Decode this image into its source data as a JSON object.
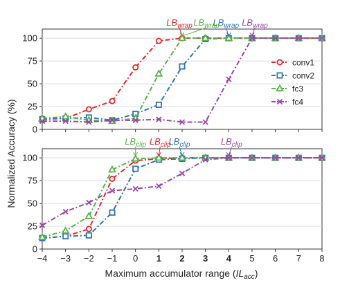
{
  "chart_data": [
    {
      "type": "line",
      "panel": "top",
      "ylabel": "",
      "xlabel": "",
      "ylim": [
        0,
        110
      ],
      "yticks": [
        0,
        25,
        50,
        75,
        100
      ],
      "xlim": [
        -4,
        8
      ],
      "grid": "horizontal",
      "legend": "center-right",
      "series": [
        {
          "name": "conv1",
          "color": "#e8262a",
          "marker": "circle",
          "dash": "dashdot",
          "x": [
            -4,
            -3,
            -2,
            -1,
            0,
            1,
            2,
            3,
            4,
            5,
            6,
            7,
            8
          ],
          "y": [
            12,
            12,
            22,
            31,
            68,
            97,
            100,
            100,
            100,
            100,
            100,
            100,
            100
          ]
        },
        {
          "name": "conv2",
          "color": "#2f72b6",
          "marker": "square",
          "dash": "dashdot",
          "x": [
            -4,
            -3,
            -2,
            -1,
            0,
            1,
            2,
            3,
            4,
            5,
            6,
            7,
            8
          ],
          "y": [
            11,
            12,
            13,
            10,
            17,
            27,
            69,
            99,
            100,
            100,
            100,
            100,
            100
          ]
        },
        {
          "name": "fc3",
          "color": "#55b448",
          "marker": "triangle",
          "dash": "dashdot",
          "x": [
            -4,
            -3,
            -2,
            -1,
            0,
            1,
            2,
            3,
            4,
            5,
            6,
            7,
            8
          ],
          "y": [
            12,
            14,
            10,
            9,
            12,
            61,
            100,
            100,
            100,
            100,
            100,
            100,
            100
          ]
        },
        {
          "name": "fc4",
          "color": "#9a45a8",
          "marker": "x",
          "dash": "dashdot",
          "x": [
            -4,
            -3,
            -2,
            -1,
            0,
            1,
            2,
            3,
            4,
            5,
            6,
            7,
            8
          ],
          "y": [
            9,
            9,
            8,
            10,
            10,
            11,
            8,
            8,
            55,
            100,
            100,
            100,
            100
          ]
        }
      ],
      "annotations": [
        {
          "base": "LB",
          "sub": "wrap",
          "color": "#e8262a",
          "x": 2
        },
        {
          "base": "LB",
          "sub": "wrap",
          "color": "#55b448",
          "x": 2
        },
        {
          "base": "LB",
          "sub": "wrap",
          "color": "#2f72b6",
          "x": 4
        },
        {
          "base": "LB",
          "sub": "wrap",
          "color": "#9a45a8",
          "x": 5
        }
      ]
    },
    {
      "type": "line",
      "panel": "bottom",
      "ylabel": "",
      "xlabel": "Maximum accumulator range (IL_acc)",
      "ylim": [
        0,
        110
      ],
      "yticks": [
        0,
        25,
        50,
        75,
        100
      ],
      "xlim": [
        -4,
        8
      ],
      "xticks": [
        "−4",
        "−3",
        "−2",
        "−1",
        "0",
        "1",
        "2",
        "3",
        "4",
        "5",
        "6",
        "7",
        "8"
      ],
      "bold_xticks": [
        "1",
        "2",
        "3",
        "4"
      ],
      "grid": "horizontal",
      "series": [
        {
          "name": "conv1",
          "color": "#e8262a",
          "marker": "circle",
          "dash": "dashdot",
          "x": [
            -4,
            -3,
            -2,
            -1,
            0,
            1,
            2,
            3,
            4,
            5,
            6,
            7,
            8
          ],
          "y": [
            12,
            14,
            22,
            77,
            97,
            99,
            100,
            100,
            100,
            100,
            100,
            100,
            100
          ]
        },
        {
          "name": "conv2",
          "color": "#2f72b6",
          "marker": "square",
          "dash": "dashdot",
          "x": [
            -4,
            -3,
            -2,
            -1,
            0,
            1,
            2,
            3,
            4,
            5,
            6,
            7,
            8
          ],
          "y": [
            12,
            14,
            15,
            40,
            88,
            98,
            99,
            100,
            100,
            100,
            100,
            100,
            100
          ]
        },
        {
          "name": "fc3",
          "color": "#55b448",
          "marker": "triangle",
          "dash": "dashdot",
          "x": [
            -4,
            -3,
            -2,
            -1,
            0,
            1,
            2,
            3,
            4,
            5,
            6,
            7,
            8
          ],
          "y": [
            13,
            20,
            36,
            87,
            99,
            100,
            100,
            100,
            100,
            100,
            100,
            100,
            100
          ]
        },
        {
          "name": "fc4",
          "color": "#9a45a8",
          "marker": "x",
          "dash": "dashdot",
          "x": [
            -4,
            -3,
            -2,
            -1,
            0,
            1,
            2,
            3,
            4,
            5,
            6,
            7,
            8
          ],
          "y": [
            26,
            41,
            51,
            64,
            66,
            69,
            83,
            98,
            100,
            100,
            100,
            100,
            100
          ]
        }
      ],
      "annotations": [
        {
          "base": "LB",
          "sub": "clip",
          "color": "#55b448",
          "x": 0
        },
        {
          "base": "LB",
          "sub": "clip",
          "color": "#e8262a",
          "x": 1
        },
        {
          "base": "LB",
          "sub": "clip",
          "color": "#2f72b6",
          "x": 2
        },
        {
          "base": "LB",
          "sub": "clip",
          "color": "#9a45a8",
          "x": 4
        }
      ]
    }
  ],
  "shared_ylabel": "Normalized Accuracy (%)",
  "xlabel_main": "Maximum accumulator range (",
  "xlabel_italic": "IL",
  "xlabel_sub": "acc",
  "xlabel_close": ")"
}
